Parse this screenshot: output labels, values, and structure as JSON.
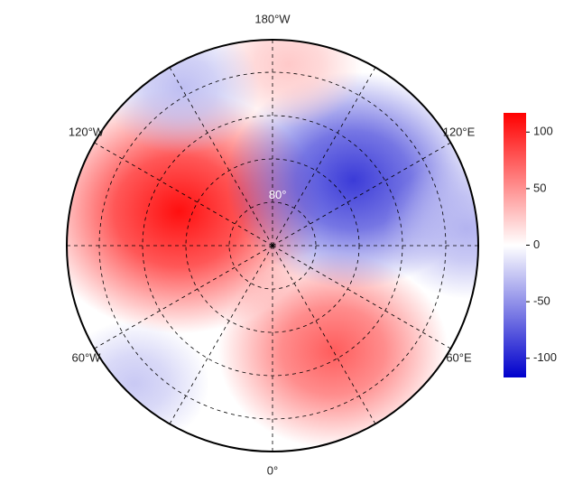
{
  "chart_data": {
    "type": "polar-map",
    "lon_labels": [
      {
        "lon": 180,
        "label": "180°W"
      },
      {
        "lon": -120,
        "label": "120°W"
      },
      {
        "lon": 120,
        "label": "120°E"
      },
      {
        "lon": -60,
        "label": "60°W"
      },
      {
        "lon": 60,
        "label": "60°E"
      },
      {
        "lon": 0,
        "label": "0°"
      }
    ],
    "lat_circles": [
      80,
      70,
      60,
      50
    ],
    "lat_label": {
      "lat": 80,
      "label": "80°"
    },
    "anomalies": [
      {
        "lon": -110,
        "lat": 67,
        "value": 110
      },
      {
        "lon": 30,
        "lat": 62,
        "value": 75
      },
      {
        "lon": 129,
        "lat": 66,
        "value": -90
      },
      {
        "lon": 175,
        "lat": 48,
        "value": 25
      },
      {
        "lon": -150,
        "lat": 48,
        "value": -30
      },
      {
        "lon": 95,
        "lat": 45,
        "value": -35
      },
      {
        "lon": -45,
        "lat": 45,
        "value": -25
      }
    ],
    "colorbar": {
      "colors": [
        "#0000cc",
        "#ffffff",
        "#ff0000"
      ],
      "lim": [
        -117,
        117
      ],
      "ticks": [
        100,
        50,
        0,
        -50,
        -100
      ]
    }
  }
}
